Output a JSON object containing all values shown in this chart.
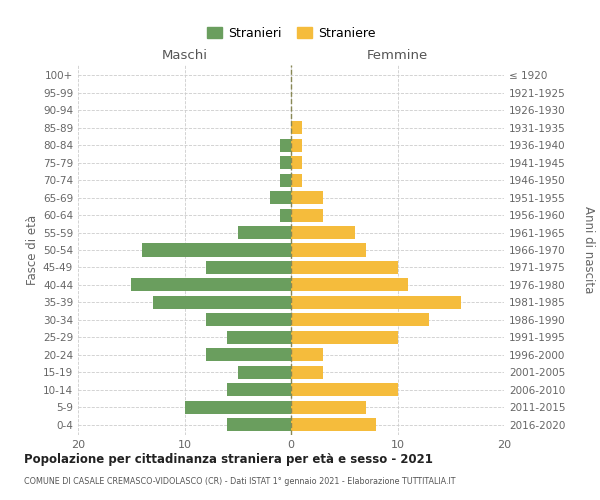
{
  "age_groups": [
    "0-4",
    "5-9",
    "10-14",
    "15-19",
    "20-24",
    "25-29",
    "30-34",
    "35-39",
    "40-44",
    "45-49",
    "50-54",
    "55-59",
    "60-64",
    "65-69",
    "70-74",
    "75-79",
    "80-84",
    "85-89",
    "90-94",
    "95-99",
    "100+"
  ],
  "birth_years": [
    "2016-2020",
    "2011-2015",
    "2006-2010",
    "2001-2005",
    "1996-2000",
    "1991-1995",
    "1986-1990",
    "1981-1985",
    "1976-1980",
    "1971-1975",
    "1966-1970",
    "1961-1965",
    "1956-1960",
    "1951-1955",
    "1946-1950",
    "1941-1945",
    "1936-1940",
    "1931-1935",
    "1926-1930",
    "1921-1925",
    "≤ 1920"
  ],
  "maschi": [
    6,
    10,
    6,
    5,
    8,
    6,
    8,
    13,
    15,
    8,
    14,
    5,
    1,
    2,
    1,
    1,
    1,
    0,
    0,
    0,
    0
  ],
  "femmine": [
    8,
    7,
    10,
    3,
    3,
    10,
    13,
    16,
    11,
    10,
    7,
    6,
    3,
    3,
    1,
    1,
    1,
    1,
    0,
    0,
    0
  ],
  "maschi_color": "#6a9e5e",
  "femmine_color": "#f5bc3c",
  "title": "Popolazione per cittadinanza straniera per età e sesso - 2021",
  "subtitle": "COMUNE DI CASALE CREMASCO-VIDOLASCO (CR) - Dati ISTAT 1° gennaio 2021 - Elaborazione TUTTITALIA.IT",
  "xlabel_left": "Maschi",
  "xlabel_right": "Femmine",
  "ylabel_left": "Fasce di età",
  "ylabel_right": "Anni di nascita",
  "legend_maschi": "Stranieri",
  "legend_femmine": "Straniere",
  "xlim": 20,
  "background_color": "#ffffff",
  "grid_color": "#cccccc",
  "bar_height": 0.75
}
